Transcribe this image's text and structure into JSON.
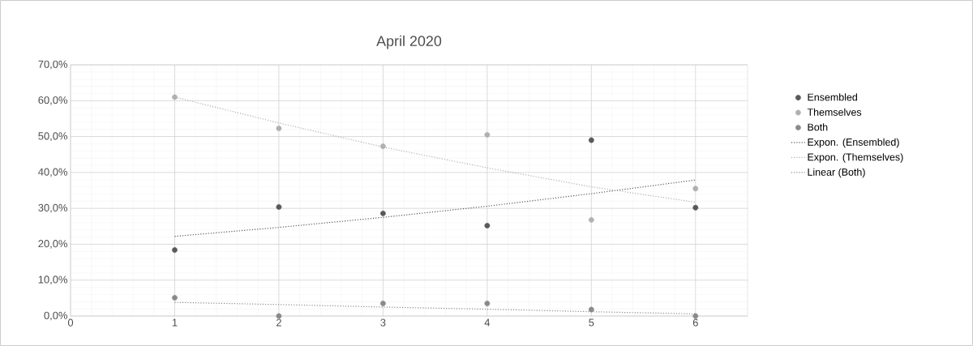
{
  "chart_data": {
    "type": "scatter",
    "title": "April 2020",
    "xlim": [
      0,
      6.5
    ],
    "xticks": [
      0,
      1,
      2,
      3,
      4,
      5,
      6
    ],
    "ylim": [
      0,
      70
    ],
    "yticks": [
      {
        "value": 0,
        "label": "0,0%"
      },
      {
        "value": 10,
        "label": "10,0%"
      },
      {
        "value": 20,
        "label": "20,0%"
      },
      {
        "value": 30,
        "label": "30,0%"
      },
      {
        "value": 40,
        "label": "40,0%"
      },
      {
        "value": 50,
        "label": "50,0%"
      },
      {
        "value": 60,
        "label": "60,0%"
      },
      {
        "value": 70,
        "label": "70,0%"
      }
    ],
    "x": [
      1,
      2,
      3,
      4,
      5,
      6
    ],
    "grid": true,
    "legend": "right",
    "marker": "circle",
    "series": [
      {
        "name": "Ensembled",
        "color": "#595959",
        "values": [
          18.4,
          30.4,
          28.6,
          25.2,
          49.0,
          30.2
        ]
      },
      {
        "name": "Themselves",
        "color": "#b0b0b0",
        "values": [
          61.0,
          52.3,
          47.3,
          50.5,
          26.8,
          35.5
        ]
      },
      {
        "name": "Both",
        "color": "#8a8a8a",
        "values": [
          5.1,
          0,
          3.5,
          3.5,
          1.8,
          0
        ]
      },
      {
        "name": "Expon. (Ensembled)",
        "type": "line",
        "marker": "none",
        "line_style": "dotted",
        "color": "#595959",
        "x": [
          1,
          2,
          3,
          4,
          5,
          6
        ],
        "values": [
          22.2,
          24.7,
          27.5,
          30.6,
          34.1,
          37.9
        ]
      },
      {
        "name": "Expon. (Themselves)",
        "type": "line",
        "marker": "none",
        "line_style": "dotted",
        "color": "#b0b0b0",
        "x": [
          1,
          2,
          3,
          4,
          5,
          6
        ],
        "values": [
          61.0,
          53.8,
          47.1,
          41.3,
          36.0,
          31.7
        ]
      },
      {
        "name": "Linear (Both)",
        "type": "line",
        "marker": "none",
        "line_style": "dotted",
        "color": "#8a8a8a",
        "x": [
          1,
          2,
          3,
          4,
          5,
          6
        ],
        "values": [
          3.8,
          3.2,
          2.5,
          1.9,
          1.2,
          0.6
        ]
      }
    ]
  }
}
